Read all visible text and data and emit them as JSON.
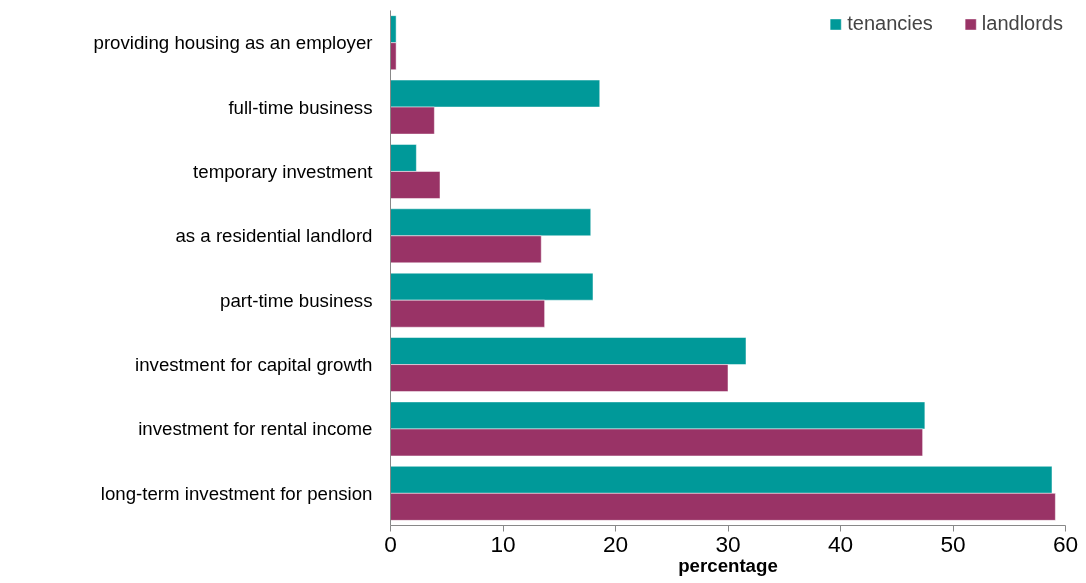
{
  "chart_data": {
    "type": "bar",
    "orientation": "horizontal",
    "xlabel": "percentage",
    "categories": [
      "providing housing as an employer",
      "full-time business",
      "temporary investment",
      "as a residential landlord",
      "part-time business",
      "investment for capital growth",
      "investment for rental income",
      "long-term investment for pension"
    ],
    "series": [
      {
        "name": "tenancies",
        "color": "#009999",
        "values": [
          0.5,
          18.6,
          2.3,
          17.8,
          18.0,
          31.6,
          47.5,
          58.8
        ]
      },
      {
        "name": "landlords",
        "color": "#993366",
        "values": [
          0.5,
          3.9,
          4.4,
          13.4,
          13.7,
          30.0,
          47.3,
          59.1
        ]
      }
    ],
    "xlim": [
      0,
      60
    ],
    "xticks": [
      0,
      10,
      20,
      30,
      40,
      50,
      60
    ],
    "grid": false,
    "legend": "top right"
  }
}
